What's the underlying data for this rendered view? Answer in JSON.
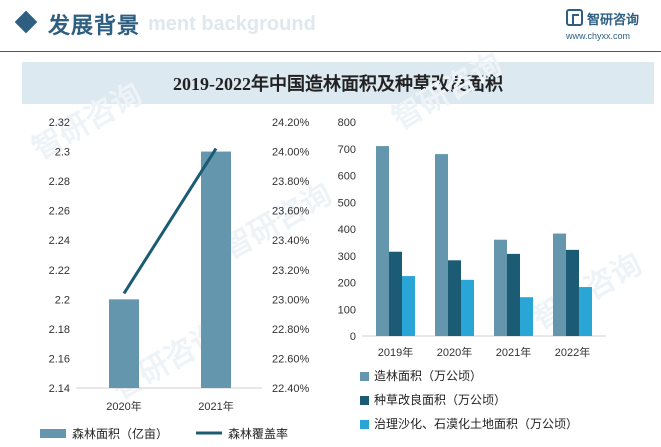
{
  "header": {
    "title": "发展背景",
    "watermark_text": "ment background",
    "logo_text": "智研咨询",
    "logo_url": "www.chyxx.com"
  },
  "watermark": [
    "智研咨询",
    "智研咨询",
    "智研咨询",
    "智研咨询",
    "智研咨询"
  ],
  "chart_title": "2019-2022年中国造林面积及种草改良面积",
  "colors": {
    "brand": "#2e5f80",
    "band": "#dce9f1",
    "bar_forest": "#6497ad",
    "line_coverage": "#1b5c74",
    "series_afforest": "#6497ad",
    "series_grass": "#1b5c74",
    "series_desert": "#2aa6d6"
  },
  "chart_data": [
    {
      "type": "bar+line",
      "categories": [
        "2020年",
        "2021年"
      ],
      "series": [
        {
          "name": "森林面积（亿亩）",
          "type": "bar",
          "axis": "left",
          "values": [
            2.2,
            2.3
          ]
        },
        {
          "name": "森林覆盖率",
          "type": "line",
          "axis": "right",
          "values": [
            23.04,
            24.02
          ]
        }
      ],
      "left_axis": {
        "ylim": [
          2.14,
          2.32
        ],
        "ticks": [
          "2.14",
          "2.16",
          "2.18",
          "2.2",
          "2.22",
          "2.24",
          "2.26",
          "2.28",
          "2.3",
          "2.32"
        ]
      },
      "right_axis": {
        "ylim": [
          22.4,
          24.2
        ],
        "ticks": [
          "22.40%",
          "22.60%",
          "22.80%",
          "23.00%",
          "23.20%",
          "23.40%",
          "23.60%",
          "23.80%",
          "24.00%",
          "24.20%"
        ]
      },
      "legend": [
        "森林面积（亿亩）",
        "森林覆盖率"
      ],
      "legend_position": "bottom",
      "grid": false
    },
    {
      "type": "bar",
      "categories": [
        "2019年",
        "2020年",
        "2021年",
        "2022年"
      ],
      "series": [
        {
          "name": "造林面积（万公顷）",
          "values": [
            710,
            680,
            360,
            383
          ]
        },
        {
          "name": "种草改良面积（万公顷）",
          "values": [
            315,
            283,
            307,
            322
          ]
        },
        {
          "name": "治理沙化、石漠化土地面积（万公顷）",
          "values": [
            224,
            210,
            145,
            183
          ]
        }
      ],
      "ylim": [
        0,
        800
      ],
      "ticks": [
        "0",
        "100",
        "200",
        "300",
        "400",
        "500",
        "600",
        "700",
        "800"
      ],
      "legend": [
        "造林面积（万公顷）",
        "种草改良面积（万公顷）",
        "治理沙化、石漠化土地面积（万公顷）"
      ],
      "legend_position": "bottom",
      "grid": false
    }
  ]
}
